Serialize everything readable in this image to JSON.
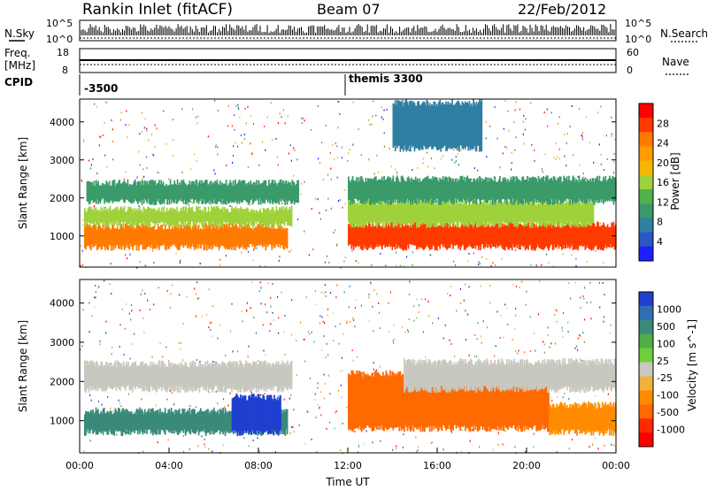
{
  "header": {
    "title": "Rankin Inlet (fitACF)",
    "beam": "Beam 07",
    "date": "22/Feb/2012"
  },
  "noise_panel": {
    "left_label": "N.Sky",
    "right_label": "N.Search",
    "left_ticks": [
      "10^5",
      "10^0"
    ],
    "right_ticks": [
      "10^5",
      "10^0"
    ]
  },
  "freq_panel": {
    "left_label_1": "Freq.",
    "left_label_2": "[MHz]",
    "right_label": "Nave",
    "left_ticks": [
      "18",
      "8"
    ],
    "right_ticks": [
      "60",
      "0"
    ]
  },
  "cpid_panel": {
    "label": "CPID",
    "entries": [
      {
        "time_hours": 0.0,
        "text": "-3500"
      },
      {
        "time_hours": 12.0,
        "text": "themis 3300"
      }
    ]
  },
  "chart_data": [
    {
      "type": "heatmap",
      "name": "power",
      "ylabel": "Slant Range [km]",
      "yticks": [
        1000,
        2000,
        3000,
        4000
      ],
      "ylim": [
        180,
        4600
      ],
      "xlim": [
        0,
        24
      ],
      "colorbar_label": "Power [dB]",
      "colorbar_ticks": [
        "28",
        "24",
        "20",
        "16",
        "12",
        "8",
        "4"
      ],
      "colorbar_colors": [
        "#ff0000",
        "#ff3a00",
        "#ff7a00",
        "#ff9c00",
        "#f2b800",
        "#9fd23a",
        "#4fb24f",
        "#3a9a6a",
        "#2f7fa3",
        "#2a56c6",
        "#1a20ff"
      ],
      "bands": [
        {
          "t_start": 0.2,
          "t_end": 9.3,
          "range_low": 700,
          "range_high": 1250,
          "value_db": 24
        },
        {
          "t_start": 0.2,
          "t_end": 9.5,
          "range_low": 1300,
          "range_high": 1700,
          "value_db": 14
        },
        {
          "t_start": 0.3,
          "t_end": 9.8,
          "range_low": 1900,
          "range_high": 2400,
          "value_db": 10
        },
        {
          "t_start": 12.0,
          "t_end": 24.0,
          "range_low": 700,
          "range_high": 1300,
          "value_db": 26
        },
        {
          "t_start": 12.0,
          "t_end": 23.0,
          "range_low": 1300,
          "range_high": 1900,
          "value_db": 16
        },
        {
          "t_start": 12.0,
          "t_end": 24.0,
          "range_low": 1900,
          "range_high": 2500,
          "value_db": 8
        },
        {
          "t_start": 14.0,
          "t_end": 18.0,
          "range_low": 3300,
          "range_high": 4500,
          "value_db": 6
        }
      ]
    },
    {
      "type": "heatmap",
      "name": "velocity",
      "ylabel": "Slant Range [km]",
      "yticks": [
        1000,
        2000,
        3000,
        4000
      ],
      "ylim": [
        180,
        4600
      ],
      "xlim": [
        0,
        24
      ],
      "xticks": [
        "00:00",
        "04:00",
        "08:00",
        "12:00",
        "16:00",
        "20:00",
        "00:00"
      ],
      "xlabel": "Time UT",
      "colorbar_label": "Velocity [m s^-1]",
      "colorbar_ticks": [
        "1000",
        "500",
        "100",
        "25",
        "-25",
        "-100",
        "-500",
        "-1000"
      ],
      "colorbar_colors": [
        "#1f3fcf",
        "#2f6fb0",
        "#3a8a7a",
        "#4fae45",
        "#6fcf3a",
        "#c8c8c0",
        "#f0b23a",
        "#ff8c00",
        "#ff6a00",
        "#ff2a00",
        "#ff0000"
      ],
      "bands": [
        {
          "t_start": 0.2,
          "t_end": 9.3,
          "range_low": 700,
          "range_high": 1250,
          "value_ms": 200
        },
        {
          "t_start": 6.8,
          "t_end": 9.0,
          "range_low": 700,
          "range_high": 1600,
          "value_ms": 900
        },
        {
          "t_start": 0.2,
          "t_end": 9.5,
          "range_low": 1800,
          "range_high": 2450,
          "value_ms": 0
        },
        {
          "t_start": 12.0,
          "t_end": 21.0,
          "range_low": 800,
          "range_high": 2200,
          "value_ms": -300
        },
        {
          "t_start": 14.5,
          "t_end": 24.0,
          "range_low": 1800,
          "range_high": 2500,
          "value_ms": 0
        },
        {
          "t_start": 21.0,
          "t_end": 24.0,
          "range_low": 700,
          "range_high": 1400,
          "value_ms": -150
        }
      ]
    }
  ]
}
